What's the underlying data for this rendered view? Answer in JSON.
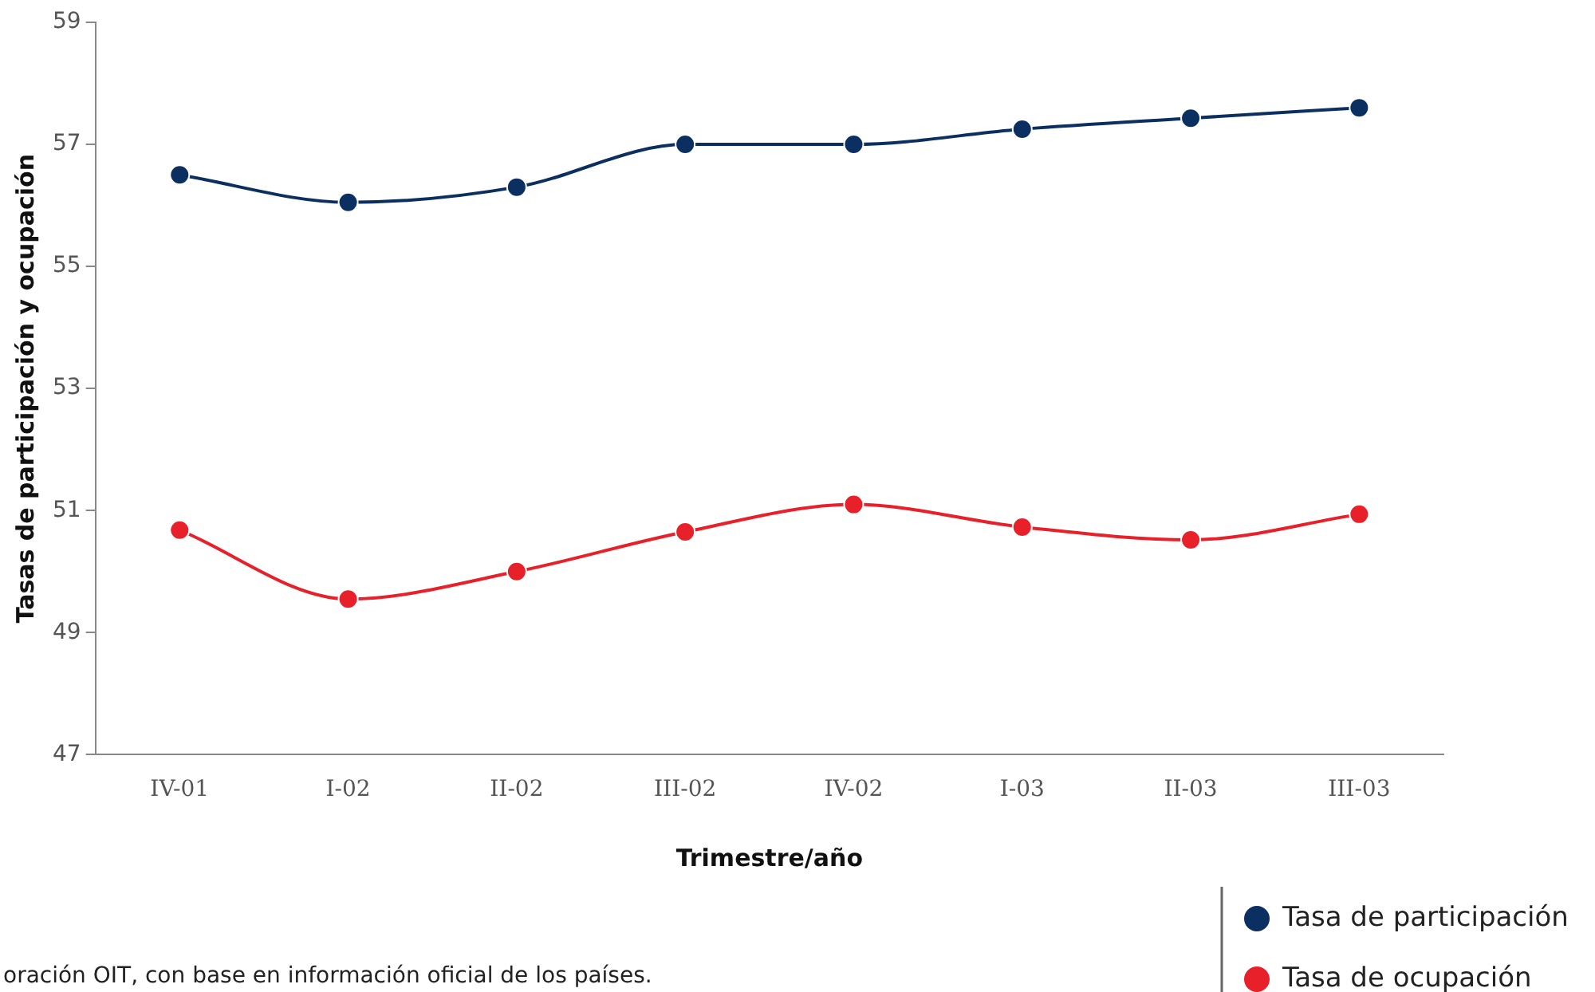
{
  "chart_data": {
    "type": "line",
    "xlabel": "Trimestre/año",
    "ylabel": "Tasas de participación y ocupación",
    "categories": [
      "IV-01",
      "I-02",
      "II-02",
      "III-02",
      "IV-02",
      "I-03",
      "II-03",
      "III-03"
    ],
    "series": [
      {
        "name": "Tasa de participación",
        "color": "#0b2f61",
        "values": [
          56.5,
          56.05,
          56.3,
          57.0,
          57.0,
          57.25,
          57.43,
          57.6
        ]
      },
      {
        "name": "Tasa de ocupación",
        "color": "#e8202a",
        "values": [
          50.68,
          49.55,
          50.0,
          50.65,
          51.1,
          50.73,
          50.52,
          50.94
        ]
      }
    ],
    "ylim": [
      47,
      59
    ],
    "yticks": [
      47,
      49,
      51,
      53,
      55,
      57,
      59
    ],
    "grid": false,
    "legend": "bottom right",
    "marker": "circle",
    "annotations": [
      "oración OIT, con base en información oficial de los países."
    ]
  }
}
